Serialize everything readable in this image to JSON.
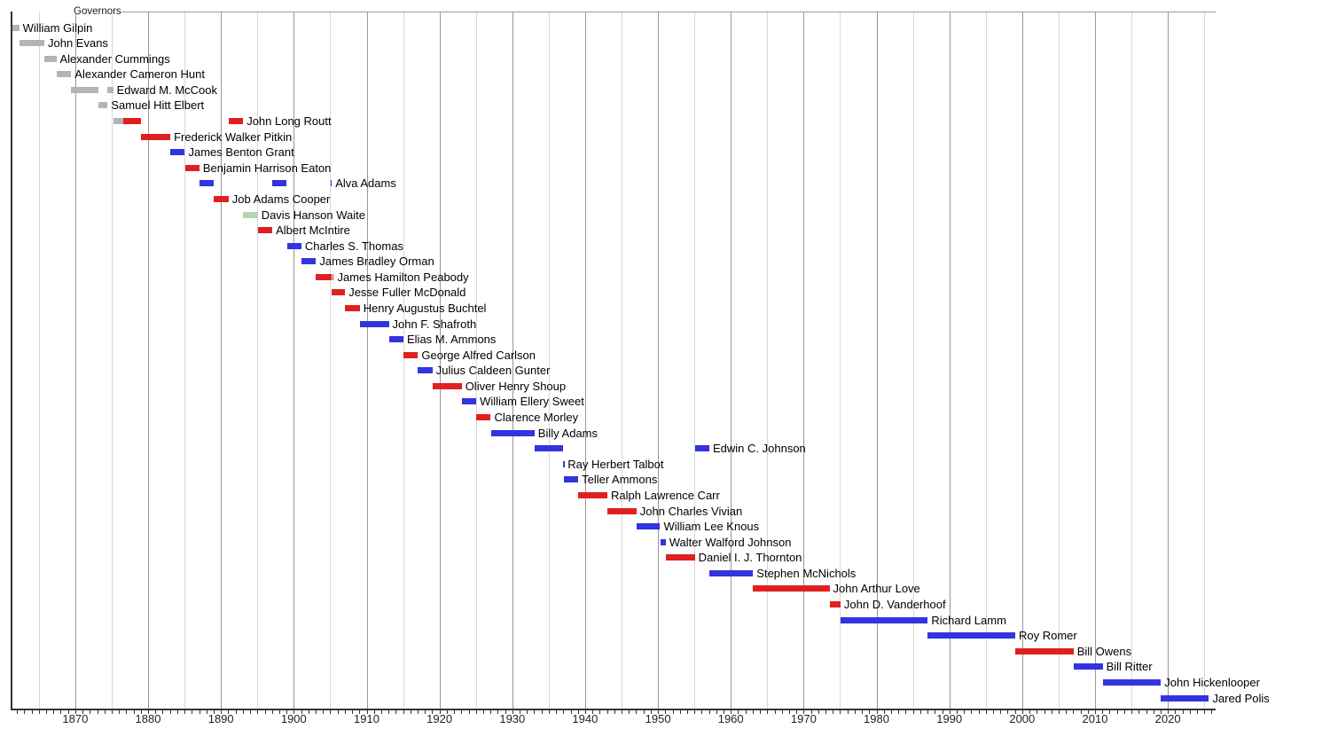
{
  "chart_data": {
    "type": "gantt",
    "title": "Governors",
    "legend_position": "none",
    "grid": "vertical, 5-year minor lines, 10-year major lines",
    "party_colors": {
      "territorial": "#b4b4b4",
      "republican": "#e02020",
      "democratic": "#3333e0",
      "populist": "#b0d8b0"
    },
    "axis": {
      "unit": "year",
      "range": [
        1861,
        2026.5
      ],
      "tick_labels": [
        "1870",
        "1880",
        "1890",
        "1900",
        "1910",
        "1920",
        "1930",
        "1940",
        "1950",
        "1960",
        "1970",
        "1980",
        "1990",
        "2000",
        "2010",
        "2020"
      ],
      "tick_label_years": [
        1870,
        1880,
        1890,
        1900,
        1910,
        1920,
        1930,
        1940,
        1950,
        1960,
        1970,
        1980,
        1990,
        2000,
        2010,
        2020
      ],
      "minor_tick_interval_years": 1,
      "gridline_interval_years": 5
    },
    "governors": [
      {
        "name": "William Gilpin",
        "terms": [
          {
            "start": 1861.25,
            "end": 1862.3,
            "party": "territorial"
          }
        ]
      },
      {
        "name": "John Evans",
        "terms": [
          {
            "start": 1862.3,
            "end": 1865.75,
            "party": "territorial"
          }
        ]
      },
      {
        "name": "Alexander Cummings",
        "terms": [
          {
            "start": 1865.75,
            "end": 1867.4,
            "party": "territorial"
          }
        ]
      },
      {
        "name": "Alexander Cameron Hunt",
        "terms": [
          {
            "start": 1867.4,
            "end": 1869.45,
            "party": "territorial"
          }
        ]
      },
      {
        "name": "Edward M. McCook",
        "terms": [
          {
            "start": 1869.45,
            "end": 1873.2,
            "party": "territorial"
          },
          {
            "start": 1874.45,
            "end": 1875.2,
            "party": "territorial"
          }
        ]
      },
      {
        "name": "Samuel Hitt Elbert",
        "terms": [
          {
            "start": 1873.2,
            "end": 1874.45,
            "party": "territorial"
          }
        ]
      },
      {
        "name": "John Long Routt",
        "terms": [
          {
            "start": 1875.2,
            "end": 1876.58,
            "party": "territorial"
          },
          {
            "start": 1876.58,
            "end": 1879.05,
            "party": "republican"
          },
          {
            "start": 1891.05,
            "end": 1893.05,
            "party": "republican"
          }
        ]
      },
      {
        "name": "Frederick Walker Pitkin",
        "terms": [
          {
            "start": 1879.05,
            "end": 1883.05,
            "party": "republican"
          }
        ]
      },
      {
        "name": "James Benton Grant",
        "terms": [
          {
            "start": 1883.05,
            "end": 1885.05,
            "party": "democratic"
          }
        ]
      },
      {
        "name": "Benjamin Harrison Eaton",
        "terms": [
          {
            "start": 1885.05,
            "end": 1887.05,
            "party": "republican"
          }
        ]
      },
      {
        "name": "Alva Adams",
        "terms": [
          {
            "start": 1887.05,
            "end": 1889.05,
            "party": "democratic"
          },
          {
            "start": 1897.05,
            "end": 1899.05,
            "party": "democratic"
          },
          {
            "start": 1905.03,
            "end": 1905.22,
            "party": "democratic"
          }
        ]
      },
      {
        "name": "Job Adams Cooper",
        "terms": [
          {
            "start": 1889.05,
            "end": 1891.05,
            "party": "republican"
          }
        ]
      },
      {
        "name": "Davis Hanson Waite",
        "terms": [
          {
            "start": 1893.05,
            "end": 1895.05,
            "party": "populist"
          }
        ]
      },
      {
        "name": "Albert McIntire",
        "terms": [
          {
            "start": 1895.05,
            "end": 1897.05,
            "party": "republican"
          }
        ]
      },
      {
        "name": "Charles S. Thomas",
        "terms": [
          {
            "start": 1899.05,
            "end": 1901.05,
            "party": "democratic"
          }
        ]
      },
      {
        "name": "James Bradley Orman",
        "terms": [
          {
            "start": 1901.05,
            "end": 1903.05,
            "party": "democratic"
          }
        ]
      },
      {
        "name": "James Hamilton Peabody",
        "terms": [
          {
            "start": 1903.05,
            "end": 1905.2,
            "party": "republican"
          },
          {
            "start": 1905.33,
            "end": 1905.5,
            "party": "republican"
          }
        ]
      },
      {
        "name": "Jesse Fuller McDonald",
        "terms": [
          {
            "start": 1905.22,
            "end": 1907.05,
            "party": "republican"
          }
        ]
      },
      {
        "name": "Henry Augustus Buchtel",
        "terms": [
          {
            "start": 1907.05,
            "end": 1909.05,
            "party": "republican"
          }
        ]
      },
      {
        "name": "John F. Shafroth",
        "terms": [
          {
            "start": 1909.05,
            "end": 1913.05,
            "party": "democratic"
          }
        ]
      },
      {
        "name": "Elias M. Ammons",
        "terms": [
          {
            "start": 1913.05,
            "end": 1915.05,
            "party": "democratic"
          }
        ]
      },
      {
        "name": "George Alfred Carlson",
        "terms": [
          {
            "start": 1915.05,
            "end": 1917.05,
            "party": "republican"
          }
        ]
      },
      {
        "name": "Julius Caldeen Gunter",
        "terms": [
          {
            "start": 1917.05,
            "end": 1919.05,
            "party": "democratic"
          }
        ]
      },
      {
        "name": "Oliver Henry Shoup",
        "terms": [
          {
            "start": 1919.05,
            "end": 1923.05,
            "party": "republican"
          }
        ]
      },
      {
        "name": "William Ellery Sweet",
        "terms": [
          {
            "start": 1923.05,
            "end": 1925.05,
            "party": "democratic"
          }
        ]
      },
      {
        "name": "Clarence Morley",
        "terms": [
          {
            "start": 1925.05,
            "end": 1927.05,
            "party": "republican"
          }
        ]
      },
      {
        "name": "Billy Adams",
        "terms": [
          {
            "start": 1927.05,
            "end": 1933.05,
            "party": "democratic"
          }
        ]
      },
      {
        "name": "Edwin C. Johnson",
        "terms": [
          {
            "start": 1933.05,
            "end": 1937.01,
            "party": "democratic"
          },
          {
            "start": 1955.05,
            "end": 1957.05,
            "party": "democratic"
          }
        ]
      },
      {
        "name": "Ray Herbert Talbot",
        "terms": [
          {
            "start": 1937.01,
            "end": 1937.12,
            "party": "democratic"
          }
        ]
      },
      {
        "name": "Teller Ammons",
        "terms": [
          {
            "start": 1937.05,
            "end": 1939.05,
            "party": "democratic"
          }
        ]
      },
      {
        "name": "Ralph Lawrence Carr",
        "terms": [
          {
            "start": 1939.05,
            "end": 1943.05,
            "party": "republican"
          }
        ]
      },
      {
        "name": "John Charles Vivian",
        "terms": [
          {
            "start": 1943.05,
            "end": 1947.05,
            "party": "republican"
          }
        ]
      },
      {
        "name": "William Lee Knous",
        "terms": [
          {
            "start": 1947.05,
            "end": 1950.3,
            "party": "democratic"
          }
        ]
      },
      {
        "name": "Walter Walford Johnson",
        "terms": [
          {
            "start": 1950.3,
            "end": 1951.05,
            "party": "democratic"
          }
        ]
      },
      {
        "name": "Daniel I. J. Thornton",
        "terms": [
          {
            "start": 1951.05,
            "end": 1955.05,
            "party": "republican"
          }
        ]
      },
      {
        "name": "Stephen McNichols",
        "terms": [
          {
            "start": 1957.05,
            "end": 1963.05,
            "party": "democratic"
          }
        ]
      },
      {
        "name": "John Arthur Love",
        "terms": [
          {
            "start": 1963.05,
            "end": 1973.55,
            "party": "republican"
          }
        ]
      },
      {
        "name": "John D. Vanderhoof",
        "terms": [
          {
            "start": 1973.55,
            "end": 1975.05,
            "party": "republican"
          }
        ]
      },
      {
        "name": "Richard Lamm",
        "terms": [
          {
            "start": 1975.05,
            "end": 1987.05,
            "party": "democratic"
          }
        ]
      },
      {
        "name": "Roy Romer",
        "terms": [
          {
            "start": 1987.05,
            "end": 1999.05,
            "party": "democratic"
          }
        ]
      },
      {
        "name": "Bill Owens",
        "terms": [
          {
            "start": 1999.05,
            "end": 2007.05,
            "party": "republican"
          }
        ]
      },
      {
        "name": "Bill Ritter",
        "terms": [
          {
            "start": 2007.05,
            "end": 2011.05,
            "party": "democratic"
          }
        ]
      },
      {
        "name": "John Hickenlooper",
        "terms": [
          {
            "start": 2011.05,
            "end": 2019.05,
            "party": "democratic"
          }
        ]
      },
      {
        "name": "Jared Polis",
        "terms": [
          {
            "start": 2019.05,
            "end": 2025.65,
            "party": "democratic"
          }
        ]
      }
    ]
  }
}
